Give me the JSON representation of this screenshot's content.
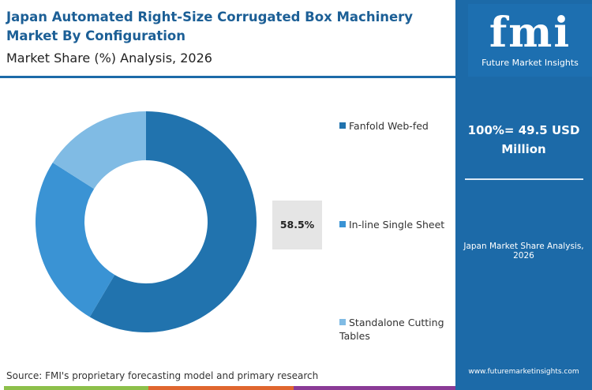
{
  "header": {
    "title": "Japan Automated Right-Size Corrugated Box Machinery Market By Configuration",
    "subtitle": "Market Share (%) Analysis, 2026"
  },
  "panel": {
    "logo_text": "fmi",
    "logo_sub": "Future Market Insights",
    "total": "100%= 49.5 USD Million",
    "caption": "Japan Market Share Analysis, 2026",
    "website": "www.futuremarketinsights.com"
  },
  "footer": {
    "source": "Source: FMI's proprietary forecasting model and primary research",
    "stripe_colors": [
      "#8dc04a",
      "#e0662f",
      "#8a3b96"
    ]
  },
  "chart_data": {
    "type": "pie",
    "donut": true,
    "title": "Japan Automated Right-Size Corrugated Box Machinery Market By Configuration",
    "categories": [
      "Fanfold Web-fed",
      "In-line Single Sheet",
      "Standalone Cutting Tables"
    ],
    "values": [
      58.5,
      25.5,
      16.0
    ],
    "colors": [
      "#2173ae",
      "#3a93d4",
      "#80bbe4"
    ],
    "data_labels": [
      "58.5%"
    ],
    "legend_placement": "right"
  }
}
